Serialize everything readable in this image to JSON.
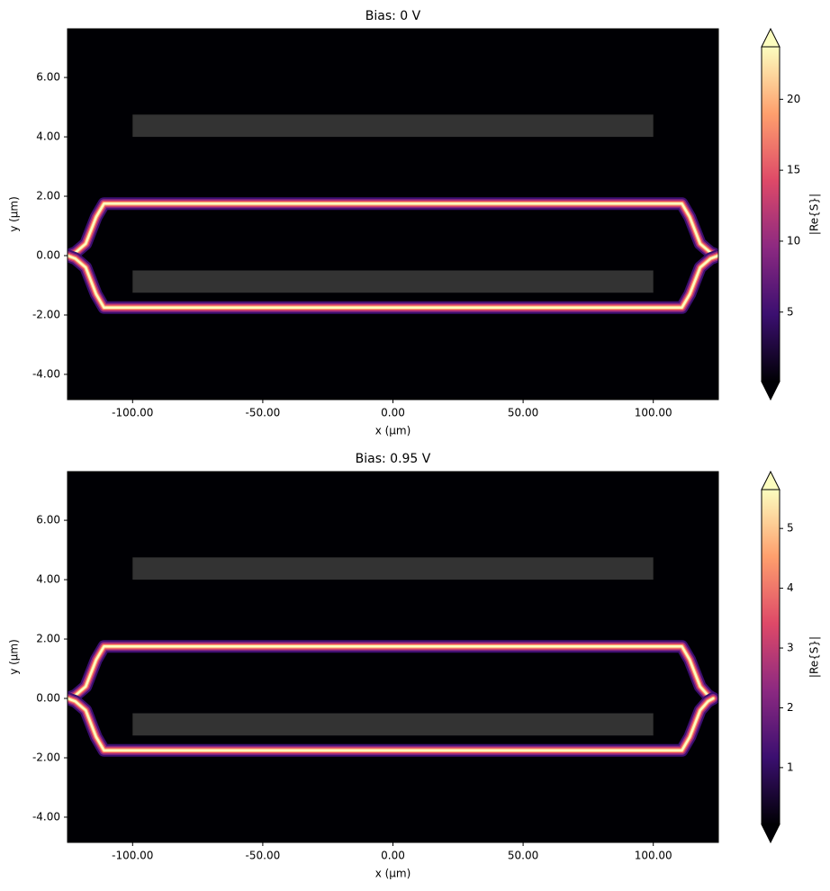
{
  "chart_data": [
    {
      "type": "heatmap",
      "title": "Bias: 0 V",
      "x_label": "x (µm)",
      "y_label": "y (µm)",
      "xlim": [
        -125,
        125
      ],
      "ylim": [
        -4.85,
        7.64
      ],
      "xticks": [
        {
          "value": -100,
          "label": "-100.00"
        },
        {
          "value": -50,
          "label": "-50.00"
        },
        {
          "value": 0,
          "label": "0.00"
        },
        {
          "value": 50,
          "label": "50.00"
        },
        {
          "value": 100,
          "label": "100.00"
        }
      ],
      "yticks": [
        {
          "value": -4,
          "label": "-4.00"
        },
        {
          "value": -2,
          "label": "-2.00"
        },
        {
          "value": 0,
          "label": "0.00"
        },
        {
          "value": 2,
          "label": "2.00"
        },
        {
          "value": 4,
          "label": "4.00"
        },
        {
          "value": 6,
          "label": "6.00"
        }
      ],
      "colorbar_label": "|Re{S}|",
      "clim": [
        0.1,
        23.7
      ],
      "cticks": [
        5,
        10,
        15,
        20
      ],
      "colormap": [
        "#000004",
        "#3b0f70",
        "#8c2981",
        "#de4968",
        "#fe9f6d",
        "#fcfdbf"
      ],
      "electrode_color": "#333333",
      "electrodes": [
        {
          "xlim": [
            -100,
            100
          ],
          "ylim": [
            4.0,
            4.75
          ]
        },
        {
          "xlim": [
            -100,
            100
          ],
          "ylim": [
            -1.25,
            -0.5
          ]
        }
      ],
      "paths": [
        {
          "x": [
            -125,
            -122,
            -118,
            -114,
            -111,
            111,
            114,
            118,
            122,
            125
          ],
          "y": [
            0,
            0.1,
            0.4,
            1.3,
            1.75,
            1.75,
            1.3,
            0.4,
            0.1,
            0
          ]
        },
        {
          "x": [
            -125,
            -122,
            -118,
            -114,
            -111,
            111,
            114,
            118,
            122,
            125
          ],
          "y": [
            0,
            -0.1,
            -0.4,
            -1.3,
            -1.75,
            -1.75,
            -1.3,
            -0.4,
            -0.1,
            0
          ]
        }
      ]
    },
    {
      "type": "heatmap",
      "title": "Bias: 0.95 V",
      "x_label": "x (µm)",
      "y_label": "y (µm)",
      "xlim": [
        -125,
        125
      ],
      "ylim": [
        -4.85,
        7.64
      ],
      "xticks": [
        {
          "value": -100,
          "label": "-100.00"
        },
        {
          "value": -50,
          "label": "-50.00"
        },
        {
          "value": 0,
          "label": "0.00"
        },
        {
          "value": 50,
          "label": "50.00"
        },
        {
          "value": 100,
          "label": "100.00"
        }
      ],
      "yticks": [
        {
          "value": -4,
          "label": "-4.00"
        },
        {
          "value": -2,
          "label": "-2.00"
        },
        {
          "value": 0,
          "label": "0.00"
        },
        {
          "value": 2,
          "label": "2.00"
        },
        {
          "value": 4,
          "label": "4.00"
        },
        {
          "value": 6,
          "label": "6.00"
        }
      ],
      "colorbar_label": "|Re{S}|",
      "clim": [
        0.05,
        5.65
      ],
      "cticks": [
        1,
        2,
        3,
        4,
        5
      ],
      "colormap": [
        "#000004",
        "#3b0f70",
        "#8c2981",
        "#de4968",
        "#fe9f6d",
        "#fcfdbf"
      ],
      "electrode_color": "#333333",
      "electrodes": [
        {
          "xlim": [
            -100,
            100
          ],
          "ylim": [
            4.0,
            4.75
          ]
        },
        {
          "xlim": [
            -100,
            100
          ],
          "ylim": [
            -1.25,
            -0.5
          ]
        }
      ],
      "paths": [
        {
          "x": [
            -125,
            -122,
            -118,
            -114,
            -111,
            111,
            114,
            118,
            121,
            123
          ],
          "y": [
            0,
            0.1,
            0.4,
            1.3,
            1.75,
            1.75,
            1.3,
            0.4,
            0.1,
            0
          ]
        },
        {
          "x": [
            -125,
            -122,
            -118,
            -114,
            -111,
            111,
            114,
            118,
            121,
            123
          ],
          "y": [
            0,
            -0.1,
            -0.4,
            -1.3,
            -1.75,
            -1.75,
            -1.3,
            -0.4,
            -0.1,
            0
          ]
        }
      ]
    }
  ]
}
